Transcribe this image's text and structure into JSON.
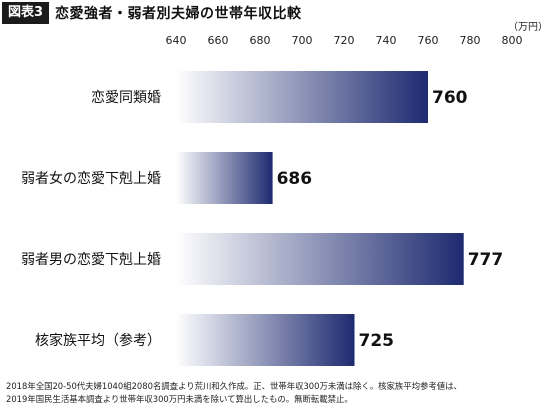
{
  "header": {
    "badge": "図表3",
    "title": "恋愛強者・弱者別夫婦の世帯年収比較"
  },
  "chart_data": {
    "type": "bar",
    "orientation": "horizontal",
    "title": "恋愛強者・弱者別夫婦の世帯年収比較",
    "unit": "（万円）",
    "categories": [
      "恋愛同類婚",
      "弱者女の恋愛下剋上婚",
      "弱者男の恋愛下剋上婚",
      "核家族平均（参考）"
    ],
    "values": [
      760,
      686,
      777,
      725
    ],
    "xlim": [
      640,
      800
    ],
    "ticks": [
      640,
      660,
      680,
      700,
      720,
      740,
      760,
      780,
      800
    ],
    "grid": false,
    "bar_color_start": "#ffffff",
    "bar_color_end": "#1d2a70"
  },
  "footnote": [
    "2018年全国20-50代夫婦1040組2080名調査より荒川和久作成。正、世帯年収300万未満は除く。核家族平均参考値は、",
    "2019年国民生活基本調査より世帯年収300万円未満を除いて算出したもの。無断転載禁止。"
  ]
}
